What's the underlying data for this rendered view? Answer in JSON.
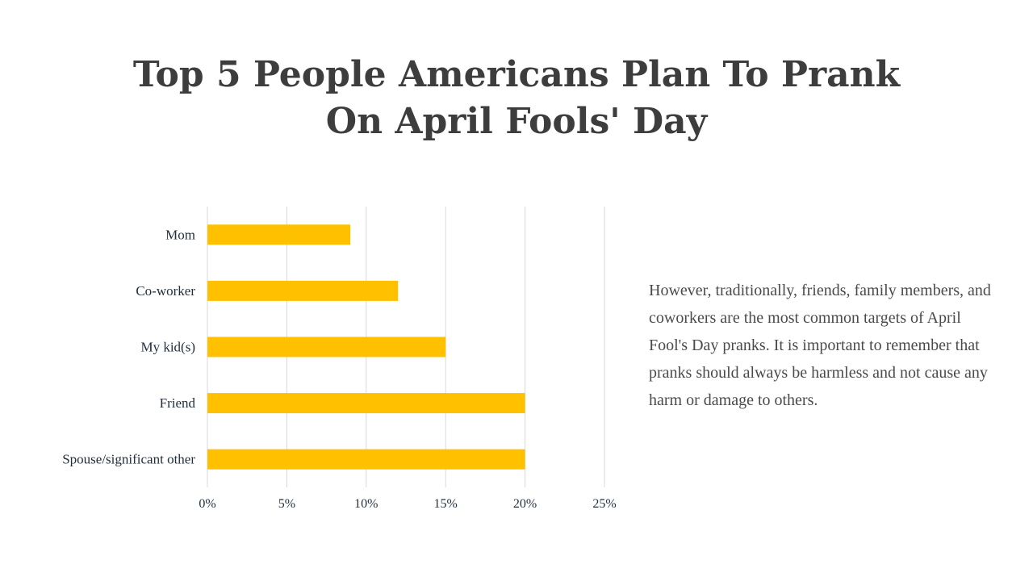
{
  "slide": {
    "title": "Top 5 People Americans Plan To Prank On April Fools' Day",
    "description": "However, traditionally, friends, family members, and coworkers are the most common targets of April Fool's Day pranks. It is important to remember that pranks should always be harmless and not cause any harm or damage to others."
  },
  "colors": {
    "bar": "#FFC000",
    "grid": "#d9d9d9",
    "title": "#3d3d3d",
    "text": "#4a4a4a"
  },
  "chart_data": {
    "type": "bar",
    "orientation": "horizontal",
    "categories": [
      "Mom",
      "Co-worker",
      "My kid(s)",
      "Friend",
      "Spouse/significant other"
    ],
    "values": [
      9,
      12,
      15,
      20,
      20
    ],
    "xlim": [
      0,
      25
    ],
    "xticks": [
      0,
      5,
      10,
      15,
      20,
      25
    ],
    "xtick_labels": [
      "0%",
      "5%",
      "10%",
      "15%",
      "20%",
      "25%"
    ],
    "grid": true,
    "legend": "none"
  }
}
